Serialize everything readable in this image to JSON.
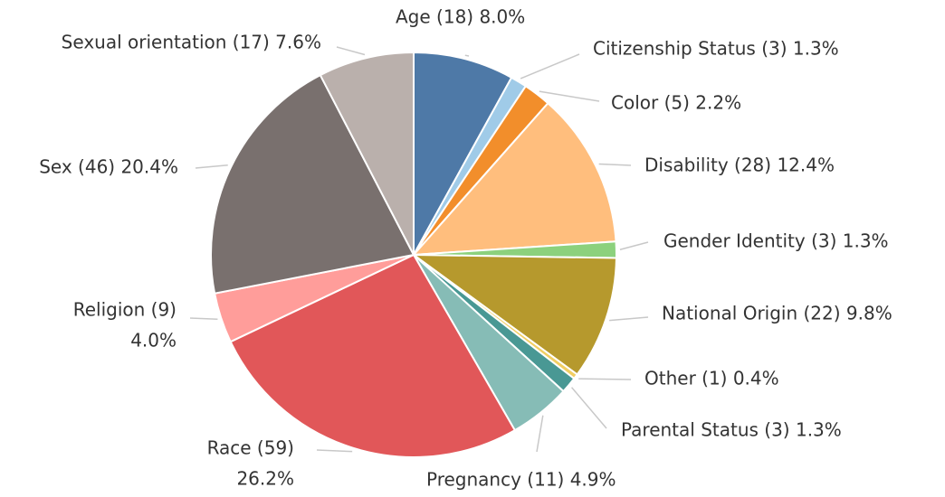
{
  "chart_data": {
    "type": "pie",
    "categories": [
      "Age",
      "Citizenship Status",
      "Color",
      "Disability",
      "Gender Identity",
      "National Origin",
      "Other",
      "Parental Status",
      "Pregnancy",
      "Race",
      "Religion",
      "Sex",
      "Sexual orientation"
    ],
    "values": [
      8.0,
      1.3,
      2.2,
      12.4,
      1.3,
      9.8,
      0.4,
      1.3,
      4.9,
      26.2,
      4.0,
      20.4,
      7.6
    ],
    "value_labels": [
      [
        "Age (18) 8.0%"
      ],
      [
        "Citizenship Status (3) 1.3%"
      ],
      [
        "Color (5) 2.2%"
      ],
      [
        "Disability (28) 12.4%"
      ],
      [
        "Gender Identity (3) 1.3%"
      ],
      [
        "National Origin (22) 9.8%"
      ],
      [
        "Other (1) 0.4%"
      ],
      [
        "Parental Status (3) 1.3%"
      ],
      [
        "Pregnancy (11) 4.9%"
      ],
      [
        "Race (59)",
        "26.2%"
      ],
      [
        "Religion (9)",
        "4.0%"
      ],
      [
        "Sex (46) 20.4%"
      ],
      [
        "Sexual orientation (17) 7.6%"
      ]
    ],
    "colors": [
      "#4e79a7",
      "#a0cbe8",
      "#f28e2b",
      "#ffbe7d",
      "#8cd17d",
      "#b6992d",
      "#f1ce63",
      "#499894",
      "#86bcb6",
      "#e15759",
      "#ff9d9a",
      "#79706e",
      "#bab0ac"
    ]
  }
}
